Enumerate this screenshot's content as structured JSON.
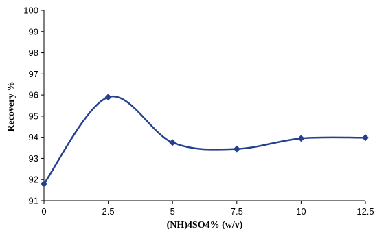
{
  "chart_data": {
    "type": "line",
    "title": "",
    "xlabel": "(NH)4SO4% (w/v)",
    "ylabel": "Recovery %",
    "xlim": [
      0,
      12.5
    ],
    "ylim": [
      91,
      100
    ],
    "x_ticks": [
      "0",
      "2.5",
      "5",
      "7.5",
      "10",
      "12.5"
    ],
    "y_ticks": [
      "91",
      "92",
      "93",
      "94",
      "95",
      "96",
      "97",
      "98",
      "99",
      "100"
    ],
    "grid": false,
    "legend": "none",
    "line_color": "#24408e",
    "smooth": true,
    "marker": "diamond",
    "series": [
      {
        "x": [
          0,
          2.5,
          5,
          7.5,
          10,
          12.5
        ],
        "values": [
          91.8,
          95.9,
          93.75,
          93.45,
          93.95,
          93.98
        ]
      }
    ]
  }
}
